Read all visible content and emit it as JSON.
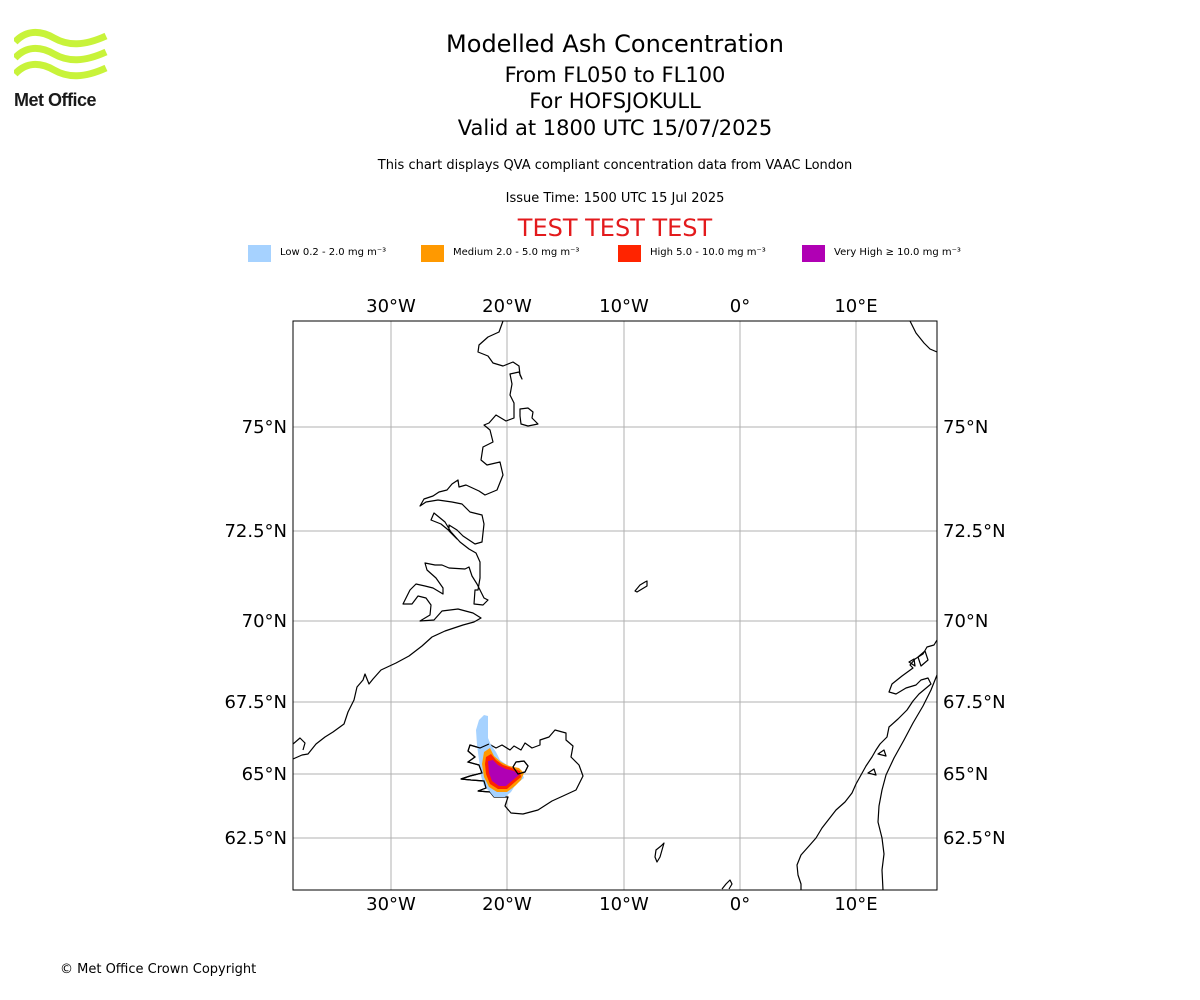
{
  "header": {
    "title": "Modelled Ash Concentration",
    "level_range": "From FL050 to FL100",
    "volcano": "For HOFSJOKULL",
    "valid_time": "Valid at 1800 UTC 15/07/2025",
    "description": "This chart displays QVA compliant concentration data from VAAC London",
    "issue_time": "Issue Time: 1500 UTC 15 Jul 2025",
    "test_banner": "TEST TEST TEST"
  },
  "logo": {
    "text": "Met Office",
    "color": "#c8f33a"
  },
  "legend": [
    {
      "label": "Low 0.2 - 2.0 mg m⁻³",
      "color": "#a6d2ff"
    },
    {
      "label": "Medium 2.0 - 5.0 mg m⁻³",
      "color": "#ff9900"
    },
    {
      "label": "High 5.0 - 10.0 mg m⁻³",
      "color": "#ff2400"
    },
    {
      "label": "Very High ≥ 10.0 mg m⁻³",
      "color": "#b000b4"
    }
  ],
  "map": {
    "lon_labels": [
      "30°W",
      "20°W",
      "10°W",
      "0°",
      "10°E"
    ],
    "lat_labels": [
      "75°N",
      "72.5°N",
      "70°N",
      "67.5°N",
      "65°N",
      "62.5°N"
    ]
  },
  "footer": {
    "copyright": "© Met Office Crown Copyright"
  }
}
